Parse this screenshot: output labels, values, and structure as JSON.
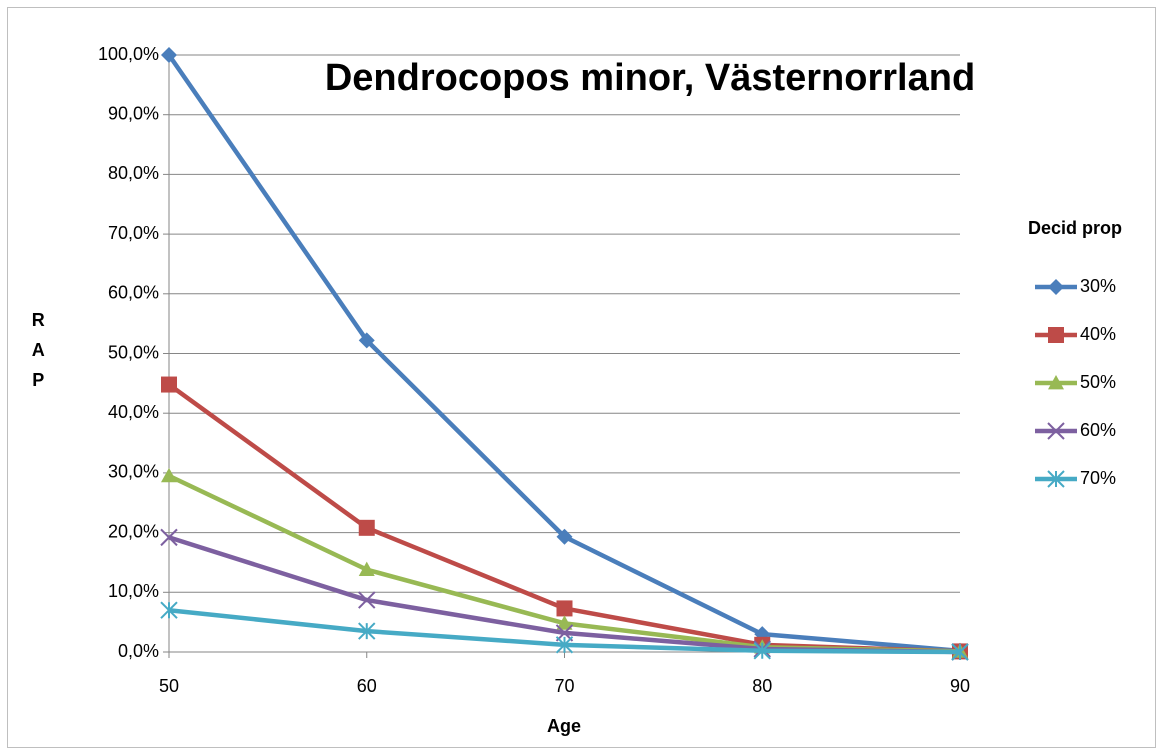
{
  "chart_data": {
    "type": "line",
    "title": "Dendrocopos minor, Västernorrland",
    "x_label": "Age",
    "y_label": "RAP",
    "legend_title": "Decid prop",
    "legend": "right",
    "grid": true,
    "x": [
      50,
      60,
      70,
      80,
      90
    ],
    "xlim": [
      50,
      90
    ],
    "xticks": [
      50,
      60,
      70,
      80,
      90
    ],
    "ylim": [
      0,
      100
    ],
    "yticks": [
      {
        "value": 0,
        "label": "0,0%"
      },
      {
        "value": 10,
        "label": "10,0%"
      },
      {
        "value": 20,
        "label": "20,0%"
      },
      {
        "value": 30,
        "label": "30,0%"
      },
      {
        "value": 40,
        "label": "40,0%"
      },
      {
        "value": 50,
        "label": "50,0%"
      },
      {
        "value": 60,
        "label": "60,0%"
      },
      {
        "value": 70,
        "label": "70,0%"
      },
      {
        "value": 80,
        "label": "80,0%"
      },
      {
        "value": 90,
        "label": "90,0%"
      },
      {
        "value": 100,
        "label": "100,0%"
      }
    ],
    "series": [
      {
        "name": "30%",
        "color": "#4a7ebb",
        "marker": "diamond",
        "values": [
          100,
          52.2,
          19.3,
          3.0,
          0.2
        ]
      },
      {
        "name": "40%",
        "color": "#be4b48",
        "marker": "square",
        "values": [
          44.8,
          20.8,
          7.3,
          1.2,
          0.1
        ]
      },
      {
        "name": "50%",
        "color": "#98b954",
        "marker": "triangle",
        "values": [
          29.5,
          13.8,
          4.8,
          0.8,
          0.1
        ]
      },
      {
        "name": "60%",
        "color": "#7d60a0",
        "marker": "x",
        "values": [
          19.2,
          8.7,
          3.2,
          0.5,
          0.0
        ]
      },
      {
        "name": "70%",
        "color": "#46aac5",
        "marker": "asterisk",
        "values": [
          7.0,
          3.5,
          1.2,
          0.2,
          0.0
        ]
      }
    ]
  }
}
